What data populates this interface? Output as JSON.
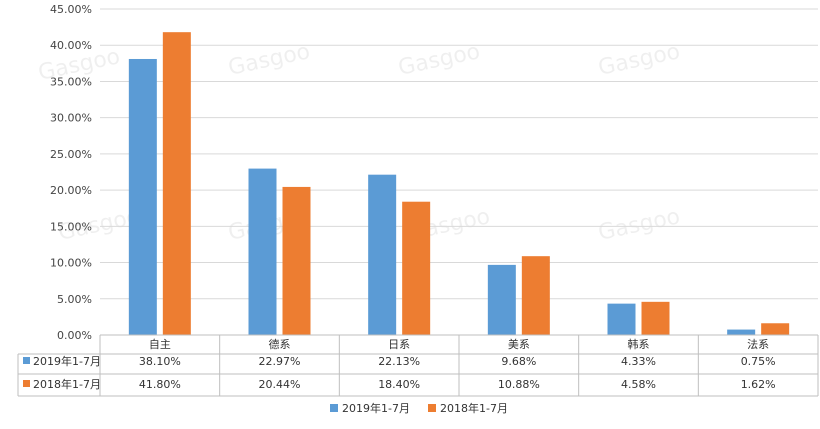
{
  "chart_data": {
    "type": "bar",
    "categories": [
      "自主",
      "德系",
      "日系",
      "美系",
      "韩系",
      "法系"
    ],
    "series": [
      {
        "name": "2019年1-7月",
        "color": "#5B9BD5",
        "values": [
          38.1,
          22.97,
          22.13,
          9.68,
          4.33,
          0.75
        ]
      },
      {
        "name": "2018年1-7月",
        "color": "#ED7D31",
        "values": [
          41.8,
          20.44,
          18.4,
          10.88,
          4.58,
          1.62
        ]
      }
    ],
    "y_ticks": [
      "0.00%",
      "5.00%",
      "10.00%",
      "15.00%",
      "20.00%",
      "25.00%",
      "30.00%",
      "35.00%",
      "40.00%",
      "45.00%"
    ],
    "ylim": [
      0,
      45
    ],
    "data_table": {
      "rows": [
        {
          "label": "2019年1-7月",
          "cells": [
            "38.10%",
            "22.97%",
            "22.13%",
            "9.68%",
            "4.33%",
            "0.75%"
          ]
        },
        {
          "label": "2018年1-7月",
          "cells": [
            "41.80%",
            "20.44%",
            "18.40%",
            "10.88%",
            "4.58%",
            "1.62%"
          ]
        }
      ]
    },
    "legend": [
      "2019年1-7月",
      "2018年1-7月"
    ],
    "legend_position": "bottom-center",
    "grid": true
  }
}
